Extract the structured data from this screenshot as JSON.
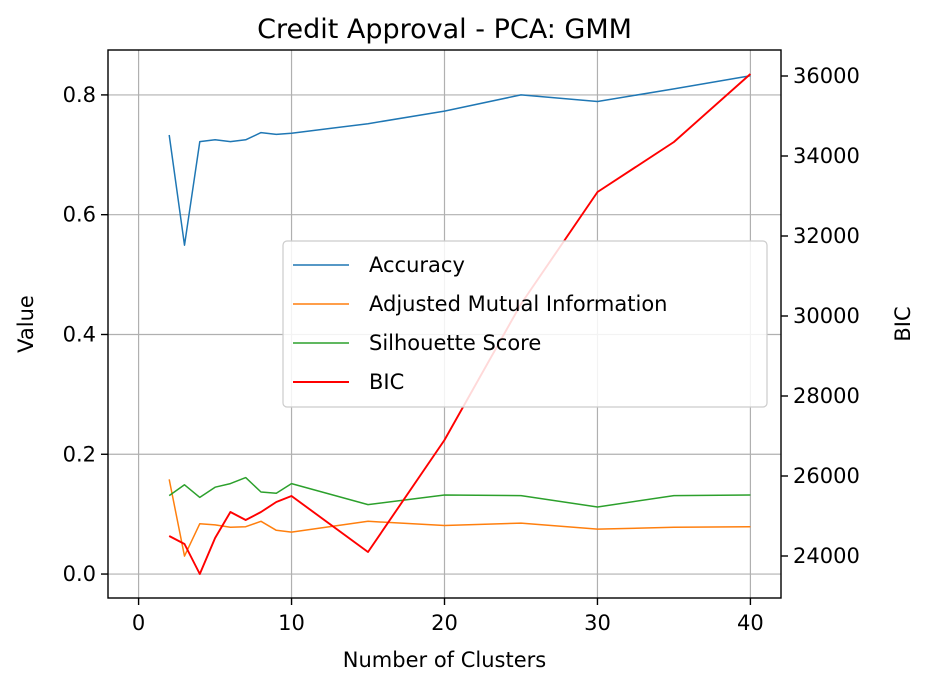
{
  "chart_data": {
    "type": "line",
    "title": "Credit Approval - PCA: GMM",
    "xlabel": "Number of Clusters",
    "ylabel": "Value",
    "y2label": "BIC",
    "xlim": [
      -2,
      42
    ],
    "ylim": [
      -0.04,
      0.875
    ],
    "y2lim": [
      22950,
      36650
    ],
    "xticks": [
      0,
      10,
      20,
      30,
      40
    ],
    "yticks": [
      0.0,
      0.2,
      0.4,
      0.6,
      0.8
    ],
    "y2ticks": [
      24000,
      26000,
      28000,
      30000,
      32000,
      34000,
      36000
    ],
    "grid": true,
    "legend_position": "center-right",
    "series": [
      {
        "name": "Accuracy",
        "axis": "left",
        "color": "#1f77b4",
        "x": [
          2,
          3,
          4,
          5,
          6,
          7,
          8,
          9,
          10,
          15,
          20,
          25,
          30,
          35,
          40
        ],
        "values": [
          0.733,
          0.549,
          0.722,
          0.725,
          0.722,
          0.725,
          0.737,
          0.734,
          0.736,
          0.752,
          0.773,
          0.8,
          0.789,
          0.81,
          0.832
        ]
      },
      {
        "name": "Adjusted Mutual Information",
        "axis": "left",
        "color": "#ff7f0e",
        "x": [
          2,
          3,
          4,
          5,
          6,
          7,
          8,
          9,
          10,
          15,
          20,
          25,
          30,
          35,
          40
        ],
        "values": [
          0.158,
          0.03,
          0.084,
          0.082,
          0.078,
          0.079,
          0.088,
          0.073,
          0.07,
          0.088,
          0.081,
          0.085,
          0.075,
          0.078,
          0.079
        ]
      },
      {
        "name": "Silhouette Score",
        "axis": "left",
        "color": "#2ca02c",
        "x": [
          2,
          3,
          4,
          5,
          6,
          7,
          8,
          9,
          10,
          15,
          20,
          25,
          30,
          35,
          40
        ],
        "values": [
          0.131,
          0.149,
          0.128,
          0.145,
          0.151,
          0.161,
          0.137,
          0.135,
          0.151,
          0.116,
          0.132,
          0.131,
          0.112,
          0.131,
          0.132
        ]
      },
      {
        "name": "BIC",
        "axis": "right",
        "color": "#ff0000",
        "x": [
          2,
          3,
          4,
          5,
          6,
          7,
          8,
          9,
          10,
          15,
          20,
          25,
          30,
          35,
          40
        ],
        "values": [
          24500,
          24300,
          23550,
          24450,
          25100,
          24900,
          25100,
          25350,
          25500,
          24100,
          26900,
          30300,
          33100,
          34350,
          36050
        ]
      }
    ]
  }
}
